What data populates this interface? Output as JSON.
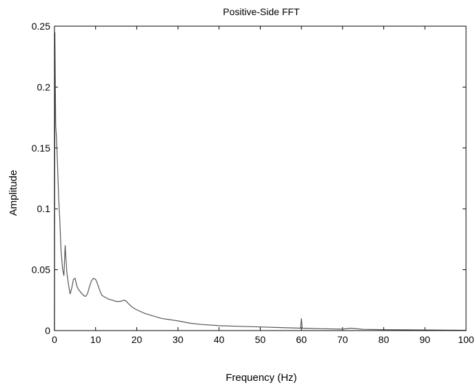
{
  "chart_data": {
    "type": "line",
    "title": "Positive-Side FFT",
    "xlabel": "Frequency (Hz)",
    "ylabel": "Amplitude",
    "xlim": [
      0,
      100
    ],
    "ylim": [
      0,
      0.25
    ],
    "xticks": [
      0,
      10,
      20,
      30,
      40,
      50,
      60,
      70,
      80,
      90,
      100
    ],
    "yticks": [
      0,
      0.05,
      0.1,
      0.15,
      0.2,
      0.25
    ],
    "ytick_labels": [
      "0",
      "0.05",
      "0.1",
      "0.15",
      "0.2",
      "0.25"
    ],
    "grid": false,
    "line_color": "#555555",
    "series": [
      {
        "x": [
          0,
          0.1,
          0.2,
          0.3,
          0.5,
          0.7,
          1.0,
          1.3,
          1.6,
          2.0,
          2.3,
          2.6,
          3.0,
          3.4,
          3.8,
          4.2,
          4.6,
          5.0,
          5.5,
          6.0,
          6.5,
          7.0,
          7.5,
          8.0,
          8.5,
          9.0,
          9.5,
          10.0,
          10.5,
          11.0,
          11.5,
          12.0,
          13.0,
          14.0,
          15.0,
          16.0,
          17.0,
          17.5,
          18.0,
          19.0,
          20.0,
          22.0,
          24.0,
          26.0,
          28.0,
          30.0,
          33.0,
          36.0,
          40.0,
          45.0,
          50.0,
          55.0,
          59.8,
          60.0,
          60.2,
          65.0,
          70.0,
          72.0,
          75.0,
          80.0,
          85.0,
          90.0,
          95.0,
          98.0,
          100.0
        ],
        "y": [
          0.0,
          0.245,
          0.205,
          0.168,
          0.158,
          0.14,
          0.11,
          0.09,
          0.065,
          0.05,
          0.045,
          0.07,
          0.048,
          0.038,
          0.03,
          0.035,
          0.042,
          0.043,
          0.036,
          0.033,
          0.031,
          0.029,
          0.028,
          0.03,
          0.036,
          0.041,
          0.043,
          0.042,
          0.038,
          0.033,
          0.029,
          0.028,
          0.026,
          0.025,
          0.024,
          0.024,
          0.025,
          0.024,
          0.022,
          0.019,
          0.017,
          0.014,
          0.012,
          0.01,
          0.009,
          0.008,
          0.006,
          0.005,
          0.004,
          0.0035,
          0.003,
          0.0025,
          0.002,
          0.01,
          0.002,
          0.0015,
          0.0012,
          0.002,
          0.001,
          0.0008,
          0.0006,
          0.0005,
          0.0004,
          0.0003,
          0.0002
        ]
      }
    ]
  }
}
